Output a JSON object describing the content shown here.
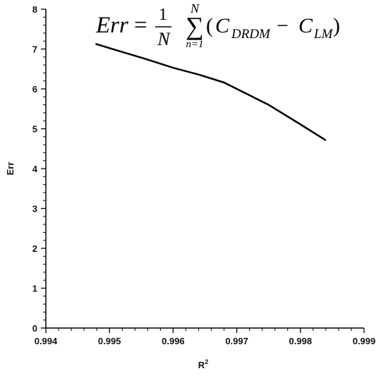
{
  "chart_data": {
    "type": "line",
    "title": "",
    "xlabel": "R",
    "xlabel_superscript": "2",
    "ylabel": "Err",
    "xlim": [
      0.994,
      0.999
    ],
    "ylim": [
      0,
      8
    ],
    "x_ticks": [
      "0.994",
      "0.995",
      "0.996",
      "0.997",
      "0.998",
      "0.999"
    ],
    "y_ticks": [
      "0",
      "1",
      "2",
      "3",
      "4",
      "5",
      "6",
      "7",
      "8"
    ],
    "grid": false,
    "series": [
      {
        "x": [
          0.99478,
          0.99515,
          0.99555,
          0.996,
          0.9964,
          0.9968,
          0.99715,
          0.9975,
          0.99795,
          0.9984
        ],
        "y": [
          7.13,
          6.95,
          6.76,
          6.53,
          6.36,
          6.16,
          5.88,
          5.6,
          5.16,
          4.71
        ]
      }
    ],
    "annotation": {
      "lhs": "Err",
      "eq": "=",
      "frac_num": "1",
      "frac_den": "N",
      "sum_sign": "∑",
      "sum_upper": "N",
      "sum_lower": "n=1",
      "paren_open": "(",
      "term1": "C",
      "term1_sub": "DRDM",
      "minus": "−",
      "term2": "C",
      "term2_sub": "LM",
      "paren_close": ")"
    }
  }
}
